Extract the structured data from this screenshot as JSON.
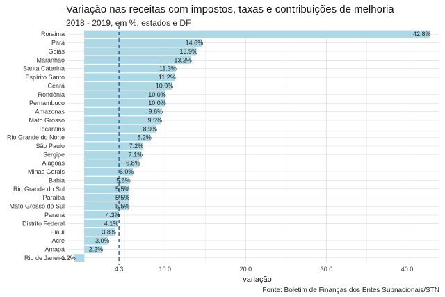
{
  "title": "Variação nas receitas com impostos, taxas e contribuições de melhoria",
  "subtitle": "2018 - 2019, em %, estados e DF",
  "caption": "Fonte: Boletim de Finanças dos Entes Subnacionais/STN",
  "colors": {
    "bar": "#add8e6",
    "reference_line": "#1f5fa3",
    "grid": "#dedede"
  },
  "chart_data": {
    "type": "bar",
    "orientation": "horizontal",
    "categories": [
      "Roraima",
      "Pará",
      "Goiás",
      "Maranhão",
      "Santa Catarina",
      "Espírito Santo",
      "Ceará",
      "Rondônia",
      "Pernambuco",
      "Amazonas",
      "Mato Grosso",
      "Tocantins",
      "Rio Grande do Norte",
      "São Paulo",
      "Sergipe",
      "Alagoas",
      "Minas Gerais",
      "Bahia",
      "Rio Grande do Sul",
      "Paraíba",
      "Mato Grosso do Sul",
      "Paraná",
      "Distrito Federal",
      "Piauí",
      "Acre",
      "Amapá",
      "Rio de Janeiro"
    ],
    "values": [
      42.8,
      14.6,
      13.9,
      13.2,
      11.3,
      11.2,
      10.9,
      10.0,
      10.0,
      9.6,
      9.5,
      8.9,
      8.2,
      7.2,
      7.1,
      6.8,
      6.0,
      5.6,
      5.5,
      5.5,
      5.5,
      4.3,
      4.1,
      3.8,
      3.0,
      2.2,
      -1.2
    ],
    "value_labels": [
      "42.8%",
      "14.6%",
      "13.9%",
      "13.2%",
      "11.3%",
      "11.2%",
      "10.9%",
      "10.0%",
      "10.0%",
      "9.6%",
      "9.5%",
      "8.9%",
      "8.2%",
      "7.2%",
      "7.1%",
      "6.8%",
      "6.0%",
      "5.6%",
      "5.5%",
      "5.5%",
      "5.5%",
      "4.3%",
      "4.1%",
      "3.8%",
      "3.0%",
      "2.2%",
      "-1.2%"
    ],
    "xlabel": "variação",
    "x_ticks": [
      4.3,
      10.0,
      20.0,
      30.0,
      40.0
    ],
    "x_tick_labels": [
      "4.3",
      "10.0",
      "20.0",
      "30.0",
      "40.0"
    ],
    "xlim": [
      -2.0,
      44.0
    ],
    "reference_line": 4.3,
    "grid": true
  }
}
